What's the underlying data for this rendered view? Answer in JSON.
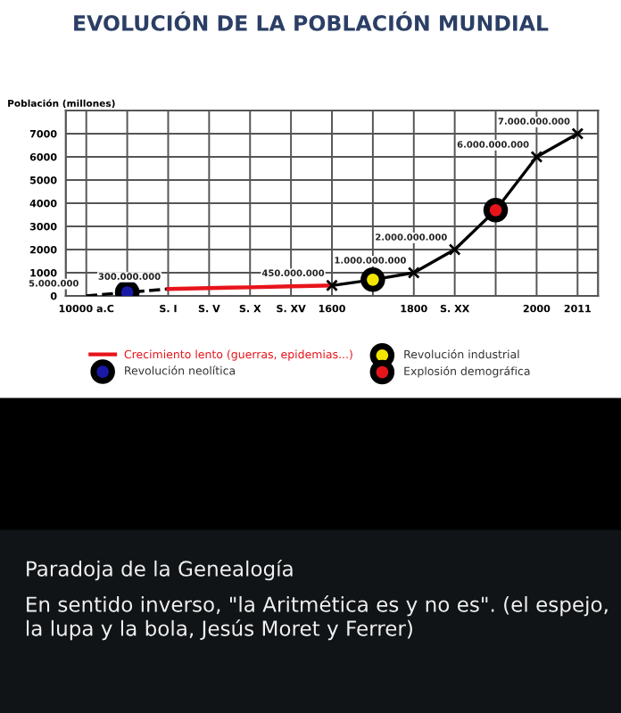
{
  "chart_data": {
    "type": "line",
    "title": "EVOLUCIÓN DE LA POBLACIÓN MUNDIAL",
    "ylabel": "Población (millones)",
    "categories": [
      "10000 a.C",
      null,
      "S. I",
      "S. V",
      "S. X",
      "S. XV",
      "1600",
      null,
      "1800",
      "S. XX",
      null,
      "2000",
      "2011"
    ],
    "ylim": [
      0,
      8000
    ],
    "yticks": [
      0,
      1000,
      2000,
      3000,
      4000,
      5000,
      6000,
      7000
    ],
    "grid": true,
    "legend": "bottom",
    "series": [
      {
        "color": "#000000",
        "line_style": "dashed",
        "marker": "none",
        "values": [
          5,
          150,
          300,
          null,
          null,
          null,
          null,
          null,
          null,
          null,
          null,
          null,
          null
        ]
      },
      {
        "name": "Crecimiento lento (guerras, epidemias...)",
        "color": "#e8141b",
        "line_style": "solid",
        "marker": "none",
        "values": [
          null,
          null,
          300,
          340,
          370,
          410,
          450,
          null,
          null,
          null,
          null,
          null,
          null
        ]
      },
      {
        "color": "#000000",
        "line_style": "solid",
        "marker": "cross",
        "values": [
          null,
          null,
          null,
          null,
          null,
          null,
          450,
          700,
          1000,
          2000,
          3700,
          6000,
          7000
        ]
      },
      {
        "type": "scatter",
        "name": "Revolución neolítica",
        "color": "#1a1aa8",
        "marker": "circle",
        "values": [
          null,
          150,
          null,
          null,
          null,
          null,
          null,
          null,
          null,
          null,
          null,
          null,
          null
        ]
      },
      {
        "type": "scatter",
        "name": "Revolución industrial",
        "color": "#f2e600",
        "marker": "circle",
        "values": [
          null,
          null,
          null,
          null,
          null,
          null,
          null,
          700,
          null,
          null,
          null,
          null,
          null
        ]
      },
      {
        "type": "scatter",
        "name": "Explosión demográfica",
        "color": "#e8141b",
        "marker": "circle",
        "values": [
          null,
          null,
          null,
          null,
          null,
          null,
          null,
          null,
          null,
          null,
          3700,
          null,
          null
        ]
      }
    ],
    "annotations": [
      {
        "text": "5.000.000",
        "x": "10000 a.C",
        "y": 5
      },
      {
        "text": "300.000.000",
        "x": "S. I",
        "y": 300
      },
      {
        "text": "450.000.000",
        "x": "1600",
        "y": 450
      },
      {
        "text": "1.000.000.000",
        "x": "1800",
        "y": 1000
      },
      {
        "text": "2.000.000.000",
        "x": "S. XX",
        "y": 2000
      },
      {
        "text": "6.000.000.000",
        "x": "2000",
        "y": 6000
      },
      {
        "text": "7.000.000.000",
        "x": "2011",
        "y": 7000
      },
      "Paradoja de la Genealogía",
      "En sentido inverso, \"la Aritmética es y no es\". (el espejo, la lupa y la bola, Jesús Moret y Ferrer)"
    ]
  }
}
